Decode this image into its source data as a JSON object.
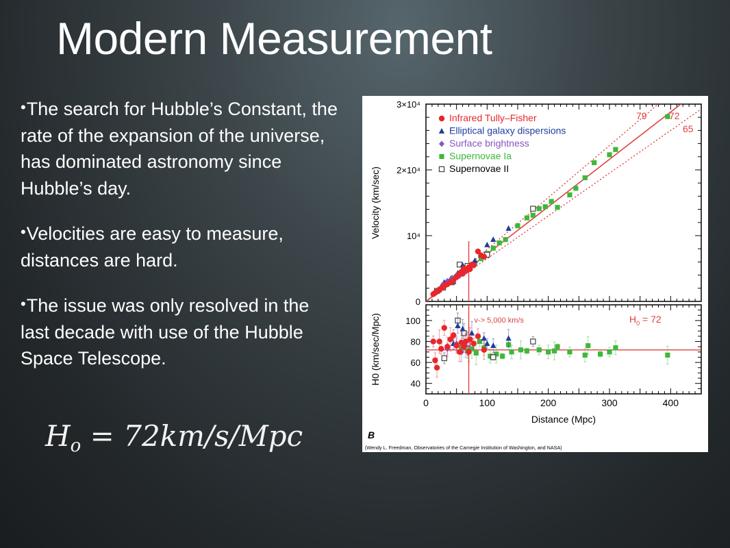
{
  "slide": {
    "title": "Modern Measurement",
    "bullets": [
      "The search for Hubble’s Constant, the rate of the expansion of the universe, has dominated astronomy since Hubble’s day.",
      "Velocities are easy to measure, distances are hard.",
      "The issue was only resolved in the last decade with use of the Hubble Space Telescope."
    ],
    "formula": {
      "lhs": "H",
      "sub": "o",
      "eq": "=",
      "rhs": "72km/s/Mpc"
    }
  },
  "chart_data": [
    {
      "type": "scatter",
      "panel": "top",
      "ylabel": "Velocity (km/sec)",
      "xlim": [
        0,
        450
      ],
      "ylim": [
        0,
        30000
      ],
      "y_ticks": [
        {
          "value": 0,
          "label": "0"
        },
        {
          "value": 10000,
          "label": "10⁴"
        },
        {
          "value": 20000,
          "label": "2×10⁴"
        },
        {
          "value": 30000,
          "label": "3×10⁴"
        }
      ],
      "fit_lines": [
        {
          "label": "79",
          "slope": 79,
          "style": "dotted"
        },
        {
          "label": "72",
          "slope": 72,
          "style": "solid"
        },
        {
          "label": "65",
          "slope": 65,
          "style": "dotted"
        }
      ],
      "vertical_marker_x": 70,
      "legend_position": "top-left",
      "series": [
        {
          "name": "Infrared Tully–Fisher",
          "marker": "circle",
          "color": "#e8262b",
          "points": [
            [
              12,
              1100
            ],
            [
              15,
              1300
            ],
            [
              18,
              1500
            ],
            [
              22,
              1700
            ],
            [
              25,
              2000
            ],
            [
              28,
              2200
            ],
            [
              32,
              2500
            ],
            [
              35,
              2600
            ],
            [
              40,
              2900
            ],
            [
              45,
              3200
            ],
            [
              50,
              3700
            ],
            [
              55,
              4200
            ],
            [
              58,
              4500
            ],
            [
              60,
              4200
            ],
            [
              62,
              5000
            ],
            [
              65,
              4600
            ],
            [
              70,
              5200
            ],
            [
              72,
              4900
            ],
            [
              75,
              5600
            ],
            [
              78,
              5500
            ],
            [
              85,
              7600
            ],
            [
              90,
              7000
            ],
            [
              95,
              6800
            ]
          ]
        },
        {
          "name": "Elliptical galaxy dispersions",
          "marker": "triangle",
          "color": "#1f3e9c",
          "points": [
            [
              30,
              2900
            ],
            [
              40,
              3400
            ],
            [
              45,
              3000
            ],
            [
              52,
              4300
            ],
            [
              60,
              5500
            ],
            [
              80,
              6200
            ],
            [
              90,
              7000
            ],
            [
              100,
              8600
            ],
            [
              110,
              9400
            ],
            [
              135,
              11100
            ]
          ]
        },
        {
          "name": "Surface brightness",
          "marker": "diamond",
          "color": "#8855c0",
          "points": [
            [
              20,
              1800
            ],
            [
              28,
              2600
            ],
            [
              35,
              3100
            ],
            [
              42,
              3500
            ],
            [
              50,
              4000
            ],
            [
              55,
              3900
            ],
            [
              60,
              4600
            ]
          ]
        },
        {
          "name": "Supernovae Ia",
          "marker": "square",
          "color": "#3db83a",
          "points": [
            [
              45,
              3600
            ],
            [
              55,
              4300
            ],
            [
              70,
              5100
            ],
            [
              80,
              5800
            ],
            [
              90,
              6500
            ],
            [
              100,
              7300
            ],
            [
              110,
              8100
            ],
            [
              120,
              8900
            ],
            [
              130,
              9400
            ],
            [
              150,
              11500
            ],
            [
              165,
              12700
            ],
            [
              175,
              13100
            ],
            [
              185,
              14100
            ],
            [
              195,
              14400
            ],
            [
              205,
              15200
            ],
            [
              215,
              14300
            ],
            [
              235,
              16200
            ],
            [
              245,
              17200
            ],
            [
              260,
              18800
            ],
            [
              275,
              21100
            ],
            [
              300,
              22300
            ],
            [
              310,
              23100
            ],
            [
              395,
              28100
            ]
          ]
        },
        {
          "name": "Supernovae II",
          "marker": "open-square",
          "color": "#333333",
          "points": [
            [
              18,
              1600
            ],
            [
              28,
              2100
            ],
            [
              42,
              2900
            ],
            [
              55,
              5600
            ],
            [
              62,
              5100
            ],
            [
              68,
              5400
            ],
            [
              100,
              7100
            ],
            [
              175,
              14100
            ]
          ]
        }
      ]
    },
    {
      "type": "scatter",
      "panel": "bottom",
      "ylabel": "H0 (km/sec/Mpc)",
      "xlabel": "Distance (Mpc)",
      "xlim": [
        0,
        450
      ],
      "ylim": [
        30,
        115
      ],
      "x_ticks": [
        0,
        100,
        200,
        300,
        400
      ],
      "y_ticks": [
        40,
        60,
        80,
        100
      ],
      "reference_line_y": 72,
      "reference_label_main": "H",
      "reference_label_sub": "0",
      "reference_label_tail": " = 72",
      "annotation": "v-> 5,000 km/s",
      "vertical_marker_x": 70,
      "series": [
        {
          "name": "Infrared Tully–Fisher",
          "marker": "circle",
          "color": "#e8262b",
          "points": [
            [
              12,
              80
            ],
            [
              15,
              62
            ],
            [
              18,
              55
            ],
            [
              22,
              80
            ],
            [
              25,
              73
            ],
            [
              30,
              93
            ],
            [
              35,
              75
            ],
            [
              40,
              82
            ],
            [
              45,
              86
            ],
            [
              50,
              76
            ],
            [
              55,
              70
            ],
            [
              58,
              79
            ],
            [
              62,
              75
            ],
            [
              65,
              80
            ],
            [
              70,
              70
            ],
            [
              72,
              82
            ],
            [
              78,
              78
            ],
            [
              85,
              85
            ],
            [
              95,
              72
            ]
          ]
        },
        {
          "name": "Elliptical galaxy dispersions",
          "marker": "triangle",
          "color": "#1f3e9c",
          "points": [
            [
              45,
              78
            ],
            [
              52,
              95
            ],
            [
              60,
              92
            ],
            [
              75,
              88
            ],
            [
              95,
              83
            ],
            [
              100,
              78
            ],
            [
              110,
              76
            ],
            [
              135,
              83
            ]
          ]
        },
        {
          "name": "Surface brightness",
          "marker": "diamond",
          "color": "#8855c0",
          "points": [
            [
              35,
              73
            ],
            [
              50,
              78
            ],
            [
              58,
              70
            ],
            [
              65,
              76
            ]
          ]
        },
        {
          "name": "Supernovae Ia",
          "marker": "square",
          "color": "#3db83a",
          "points": [
            [
              58,
              74
            ],
            [
              68,
              71
            ],
            [
              75,
              73
            ],
            [
              82,
              69
            ],
            [
              88,
              80
            ],
            [
              95,
              74
            ],
            [
              105,
              66
            ],
            [
              115,
              68
            ],
            [
              125,
              66
            ],
            [
              135,
              77
            ],
            [
              140,
              70
            ],
            [
              155,
              72
            ],
            [
              165,
              71
            ],
            [
              185,
              72
            ],
            [
              200,
              70
            ],
            [
              210,
              71
            ],
            [
              215,
              75
            ],
            [
              235,
              70
            ],
            [
              260,
              67
            ],
            [
              265,
              76
            ],
            [
              285,
              68
            ],
            [
              300,
              70
            ],
            [
              310,
              74
            ],
            [
              395,
              67
            ]
          ]
        },
        {
          "name": "Supernovae II",
          "marker": "open-square",
          "color": "#333333",
          "points": [
            [
              30,
              64
            ],
            [
              52,
              100
            ],
            [
              62,
              88
            ],
            [
              68,
              78
            ],
            [
              110,
              65
            ],
            [
              175,
              80
            ]
          ]
        }
      ]
    }
  ],
  "figure": {
    "panel_letter": "B",
    "credit": "(Wendy L. Freedman, Observatories of the Carnegie Institution of Washington, and NASA)"
  },
  "colors": {
    "fit_line": "#e04040",
    "axis": "#000000"
  }
}
